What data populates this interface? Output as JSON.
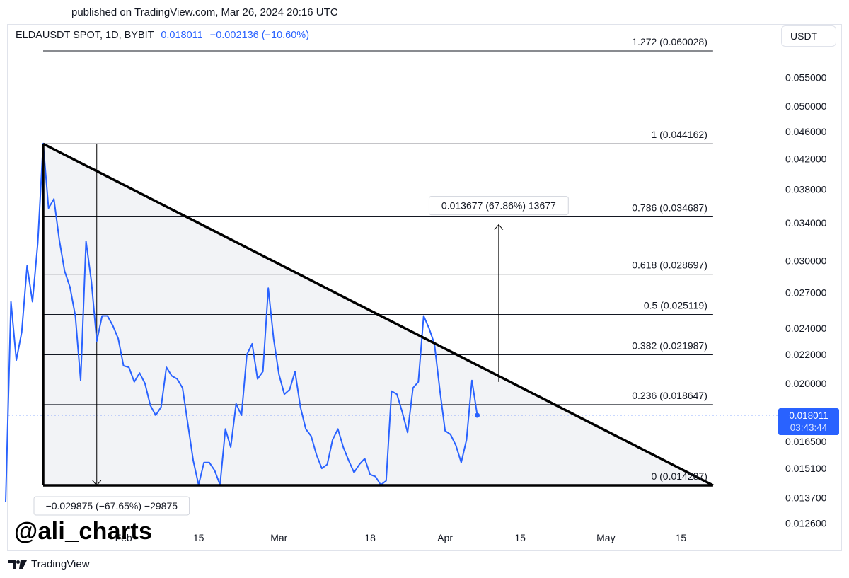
{
  "header": {
    "published": "published on TradingView.com, Mar 26, 2024 20:16 UTC"
  },
  "legend": {
    "symbol": "ELDAUSDT SPOT, 1D, BYBIT",
    "last": "0.018011",
    "change": "−0.002136 (−10.60%)"
  },
  "currency_button": "USDT",
  "price_badge": {
    "price": "0.018011",
    "countdown": "03:43:44"
  },
  "watermark": "@ali_charts",
  "footer": {
    "brand": "TradingView"
  },
  "colors": {
    "line": "#2962ff",
    "pattern": "#000000",
    "fill": "#f2f3f6",
    "fib": "#131722",
    "badge": "#2962ff"
  },
  "chart_data": {
    "type": "line",
    "symbol": "ELDAUSDT",
    "interval": "1D",
    "y_scale": "log",
    "ylim": [
      0.0126,
      0.062
    ],
    "y_ticks": [
      "0.055000",
      "0.050000",
      "0.046000",
      "0.042000",
      "0.038000",
      "0.034000",
      "0.030000",
      "0.027000",
      "0.024000",
      "0.022000",
      "0.020000",
      "0.016500",
      "0.015100",
      "0.013700",
      "0.012600"
    ],
    "x_ticks": [
      {
        "date": "2024-02-01",
        "label": "Feb"
      },
      {
        "date": "2024-02-15",
        "label": "15"
      },
      {
        "date": "2024-03-01",
        "label": "Mar"
      },
      {
        "date": "2024-03-18",
        "label": "18"
      },
      {
        "date": "2024-04-01",
        "label": "Apr"
      },
      {
        "date": "2024-04-15",
        "label": "15"
      },
      {
        "date": "2024-05-01",
        "label": "May"
      },
      {
        "date": "2024-05-15",
        "label": "15"
      }
    ],
    "xlim": [
      "2024-01-10",
      "2024-05-23"
    ],
    "series": [
      {
        "values": [
          [
            "2024-01-10",
            0.0135
          ],
          [
            "2024-01-11",
            0.0262
          ],
          [
            "2024-01-12",
            0.0216
          ],
          [
            "2024-01-13",
            0.0237
          ],
          [
            "2024-01-14",
            0.0295
          ],
          [
            "2024-01-15",
            0.0262
          ],
          [
            "2024-01-16",
            0.0318
          ],
          [
            "2024-01-17",
            0.0442
          ],
          [
            "2024-01-18",
            0.0357
          ],
          [
            "2024-01-19",
            0.0368
          ],
          [
            "2024-01-20",
            0.0322
          ],
          [
            "2024-01-21",
            0.029
          ],
          [
            "2024-01-22",
            0.0275
          ],
          [
            "2024-01-23",
            0.025
          ],
          [
            "2024-01-24",
            0.0202
          ],
          [
            "2024-01-25",
            0.032
          ],
          [
            "2024-01-26",
            0.028
          ],
          [
            "2024-01-27",
            0.023
          ],
          [
            "2024-01-28",
            0.025
          ],
          [
            "2024-01-29",
            0.025
          ],
          [
            "2024-01-30",
            0.0242
          ],
          [
            "2024-01-31",
            0.0232
          ],
          [
            "2024-02-01",
            0.0212
          ],
          [
            "2024-02-02",
            0.0211
          ],
          [
            "2024-02-03",
            0.0201
          ],
          [
            "2024-02-04",
            0.0207
          ],
          [
            "2024-02-05",
            0.02
          ],
          [
            "2024-02-06",
            0.0186
          ],
          [
            "2024-02-07",
            0.018
          ],
          [
            "2024-02-08",
            0.0185
          ],
          [
            "2024-02-09",
            0.0211
          ],
          [
            "2024-02-10",
            0.0205
          ],
          [
            "2024-02-11",
            0.0203
          ],
          [
            "2024-02-12",
            0.0197
          ],
          [
            "2024-02-13",
            0.0175
          ],
          [
            "2024-02-14",
            0.0155
          ],
          [
            "2024-02-15",
            0.0143
          ],
          [
            "2024-02-16",
            0.0154
          ],
          [
            "2024-02-17",
            0.0154
          ],
          [
            "2024-02-18",
            0.015
          ],
          [
            "2024-02-19",
            0.0143
          ],
          [
            "2024-02-20",
            0.0172
          ],
          [
            "2024-02-21",
            0.0162
          ],
          [
            "2024-02-22",
            0.0187
          ],
          [
            "2024-02-23",
            0.018
          ],
          [
            "2024-02-24",
            0.022
          ],
          [
            "2024-02-25",
            0.0228
          ],
          [
            "2024-02-26",
            0.0203
          ],
          [
            "2024-02-27",
            0.0208
          ],
          [
            "2024-02-28",
            0.0274
          ],
          [
            "2024-02-29",
            0.0232
          ],
          [
            "2024-03-01",
            0.0206
          ],
          [
            "2024-03-02",
            0.0193
          ],
          [
            "2024-03-03",
            0.0196
          ],
          [
            "2024-03-04",
            0.0208
          ],
          [
            "2024-03-05",
            0.0185
          ],
          [
            "2024-03-06",
            0.0172
          ],
          [
            "2024-03-07",
            0.0168
          ],
          [
            "2024-03-08",
            0.0158
          ],
          [
            "2024-03-09",
            0.0151
          ],
          [
            "2024-03-10",
            0.0153
          ],
          [
            "2024-03-11",
            0.0166
          ],
          [
            "2024-03-12",
            0.0172
          ],
          [
            "2024-03-13",
            0.0162
          ],
          [
            "2024-03-14",
            0.0155
          ],
          [
            "2024-03-15",
            0.0149
          ],
          [
            "2024-03-16",
            0.0153
          ],
          [
            "2024-03-17",
            0.0156
          ],
          [
            "2024-03-18",
            0.0148
          ],
          [
            "2024-03-19",
            0.0147
          ],
          [
            "2024-03-20",
            0.0143
          ],
          [
            "2024-03-21",
            0.0145
          ],
          [
            "2024-03-22",
            0.0195
          ],
          [
            "2024-03-23",
            0.0193
          ],
          [
            "2024-03-24",
            0.0182
          ],
          [
            "2024-03-25",
            0.017
          ],
          [
            "2024-03-26",
            0.0197
          ],
          [
            "2024-03-27",
            0.0201
          ],
          [
            "2024-03-28",
            0.025
          ],
          [
            "2024-03-29",
            0.024
          ],
          [
            "2024-03-30",
            0.0228
          ],
          [
            "2024-03-31",
            0.0196
          ],
          [
            "2024-04-01",
            0.0171
          ],
          [
            "2024-04-02",
            0.0169
          ],
          [
            "2024-04-03",
            0.0163
          ],
          [
            "2024-04-04",
            0.0154
          ],
          [
            "2024-04-05",
            0.0166
          ],
          [
            "2024-04-06",
            0.0202
          ],
          [
            "2024-04-07",
            0.018
          ]
        ]
      }
    ],
    "triangle": {
      "start": [
        "2024-01-17",
        0.044162
      ],
      "end": [
        "2024-05-21",
        0.01428
      ],
      "base_start": [
        "2024-01-17",
        0.01428
      ]
    },
    "fibonacci": [
      {
        "label": "1.272 (0.060028)",
        "ratio": 1.272,
        "price": 0.060028
      },
      {
        "label": "1 (0.044162)",
        "ratio": 1,
        "price": 0.044162
      },
      {
        "label": "0.786 (0.034687)",
        "ratio": 0.786,
        "price": 0.034687
      },
      {
        "label": "0.618 (0.028697)",
        "ratio": 0.618,
        "price": 0.028697
      },
      {
        "label": "0.5 (0.025119)",
        "ratio": 0.5,
        "price": 0.025119
      },
      {
        "label": "0.382 (0.021987)",
        "ratio": 0.382,
        "price": 0.021987
      },
      {
        "label": "0.236 (0.018647)",
        "ratio": 0.236,
        "price": 0.018647
      },
      {
        "label": "0 (0.014287)",
        "ratio": 0,
        "price": 0.014287
      }
    ],
    "fib_range": [
      "2024-01-17",
      "2024-05-21"
    ],
    "measurements": [
      {
        "label": "0.013677 (67.86%) 13677",
        "date": "2024-04-11",
        "from": 0.0201,
        "to": 0.0338,
        "direction": "up"
      },
      {
        "label": "−0.029875 (−67.65%) −29875",
        "date": "2024-01-27",
        "from": 0.044162,
        "to": 0.01428,
        "direction": "down"
      }
    ],
    "last_price": 0.018011
  }
}
